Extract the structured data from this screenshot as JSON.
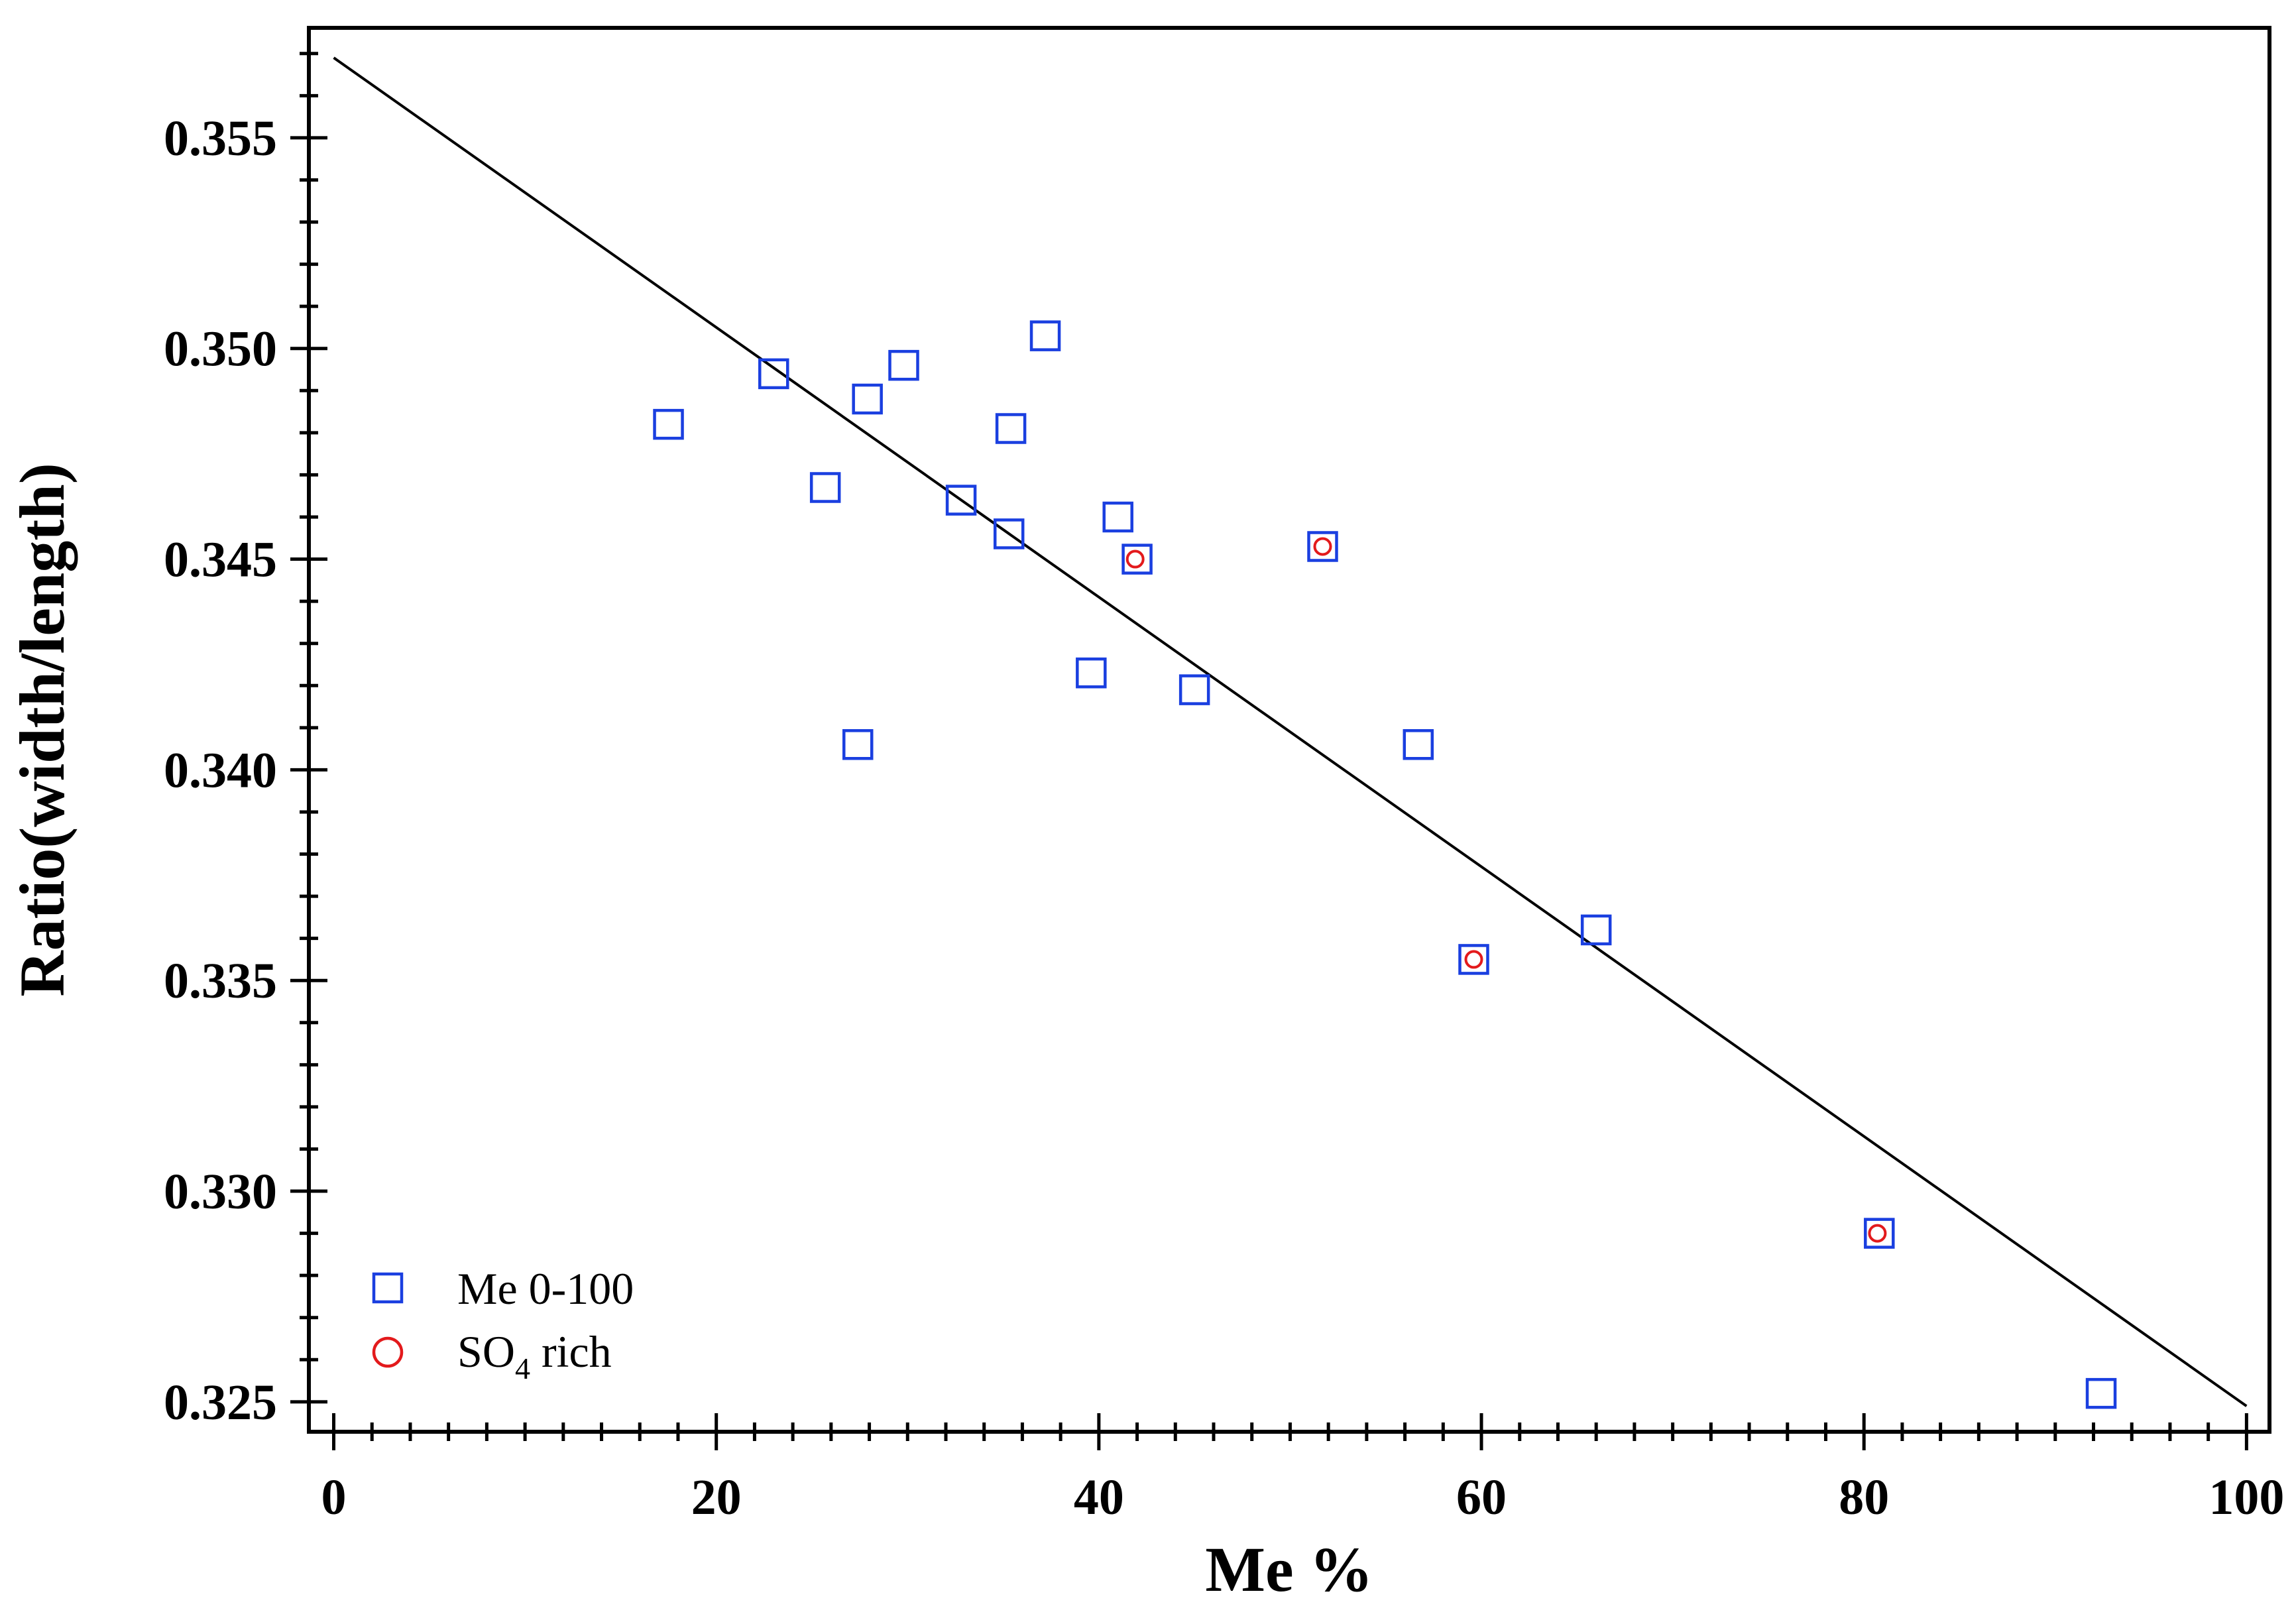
{
  "chart_data": {
    "type": "scatter",
    "title": "",
    "xlabel": "Me %",
    "ylabel": "Ratio(width/length)",
    "xlim": [
      -1.3,
      101.2
    ],
    "ylim": [
      0.32429,
      0.35761
    ],
    "x_ticks": [
      0,
      20,
      40,
      60,
      80,
      100
    ],
    "x_tick_labels": [
      "0",
      "20",
      "40",
      "60",
      "80",
      "100"
    ],
    "y_ticks": [
      0.325,
      0.33,
      0.335,
      0.34,
      0.345,
      0.35,
      0.355
    ],
    "y_tick_labels": [
      "0.325",
      "0.330",
      "0.335",
      "0.340",
      "0.345",
      "0.350",
      "0.355"
    ],
    "x_minor_step": 2,
    "y_minor_step": 0.001,
    "legend_position": "bottom-left",
    "series": [
      {
        "name": "Me 0-100",
        "marker": "square",
        "color": "#1a3fe0",
        "points": [
          [
            17.5,
            0.3482
          ],
          [
            23.0,
            0.3494
          ],
          [
            25.7,
            0.3467
          ],
          [
            27.4,
            0.3406
          ],
          [
            27.9,
            0.3488
          ],
          [
            29.8,
            0.3496
          ],
          [
            32.8,
            0.3464
          ],
          [
            35.3,
            0.3456
          ],
          [
            35.4,
            0.3481
          ],
          [
            37.2,
            0.3503
          ],
          [
            39.6,
            0.3423
          ],
          [
            41.0,
            0.346
          ],
          [
            42.0,
            0.345
          ],
          [
            45.0,
            0.3419
          ],
          [
            51.7,
            0.3453
          ],
          [
            56.7,
            0.3406
          ],
          [
            59.6,
            0.3355
          ],
          [
            66.0,
            0.3362
          ],
          [
            80.8,
            0.329
          ],
          [
            92.4,
            0.3252
          ]
        ]
      },
      {
        "name": "SO",
        "name_subscript": "4",
        "name_suffix": " rich",
        "marker": "circle",
        "color": "#e31a1c",
        "points": [
          [
            41.9,
            0.345
          ],
          [
            51.7,
            0.3453
          ],
          [
            59.6,
            0.3355
          ],
          [
            80.7,
            0.329
          ]
        ]
      }
    ],
    "fit_line": {
      "color": "#000000",
      "points": [
        [
          0,
          0.3569
        ],
        [
          100,
          0.3249
        ]
      ]
    }
  }
}
